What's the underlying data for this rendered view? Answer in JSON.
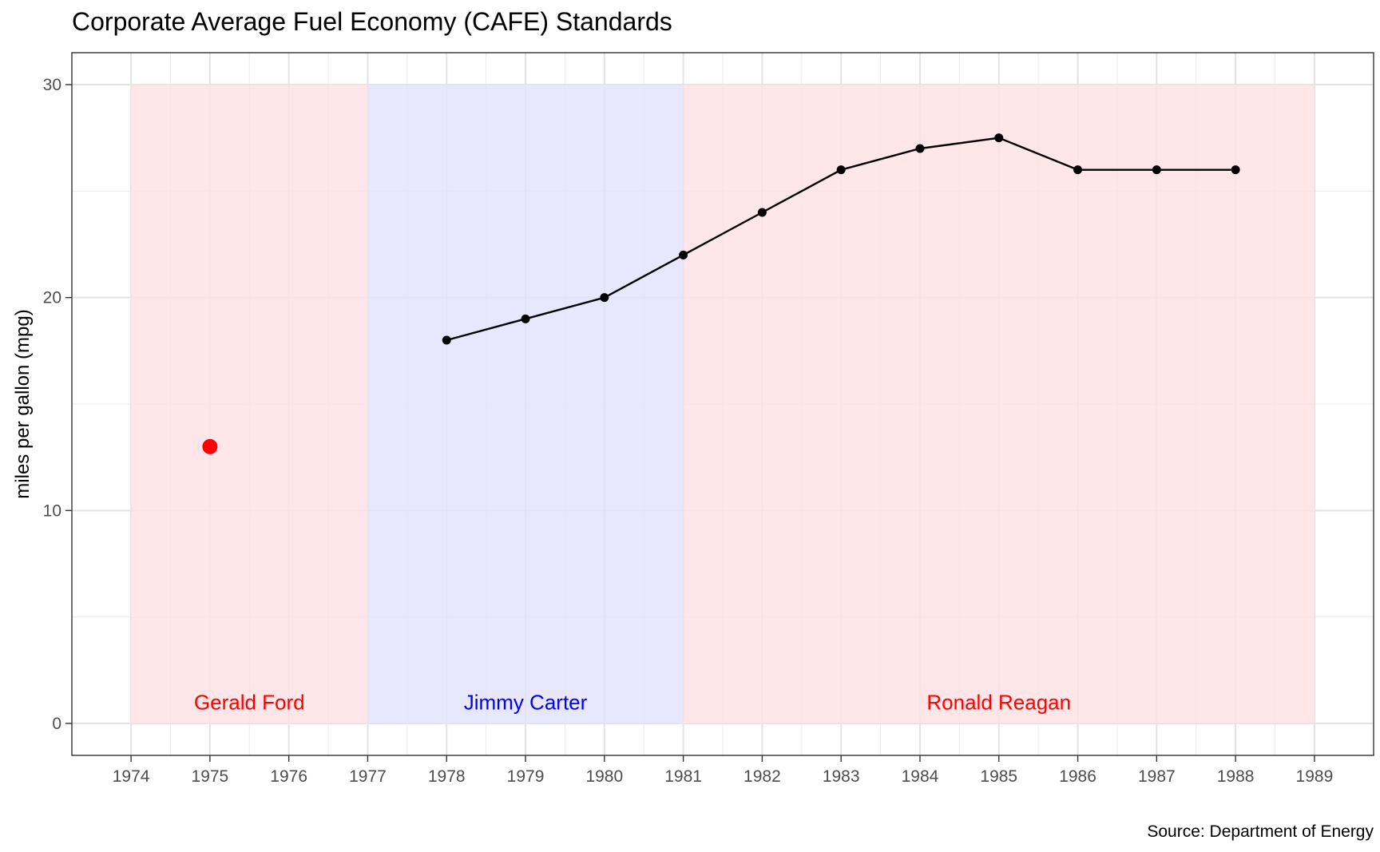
{
  "chart_data": {
    "type": "line",
    "title": "Corporate Average Fuel Economy (CAFE) Standards",
    "xlabel": "",
    "ylabel": "miles per gallon (mpg)",
    "caption": "Source: Department of Energy",
    "xlim": [
      1973.25,
      1989.75
    ],
    "ylim": [
      -1.5,
      31.5
    ],
    "x_ticks": [
      1974,
      1975,
      1976,
      1977,
      1978,
      1979,
      1980,
      1981,
      1982,
      1983,
      1984,
      1985,
      1986,
      1987,
      1988,
      1989
    ],
    "y_ticks": [
      0,
      10,
      20,
      30
    ],
    "grid": true,
    "legend": "none",
    "series": [
      {
        "x": [
          1978,
          1979,
          1980,
          1981,
          1982,
          1983,
          1984,
          1985,
          1986,
          1987,
          1988
        ],
        "values": [
          18,
          19,
          20,
          22,
          24,
          26,
          27,
          27.5,
          26,
          26,
          26
        ],
        "color": "#000000"
      }
    ],
    "highlight_point": {
      "x": 1975,
      "y": 13,
      "color": "#ff0000"
    },
    "regions": [
      {
        "label": "Gerald Ford",
        "x_start": 1974,
        "x_end": 1977,
        "y_start": 0,
        "y_end": 30,
        "fill": "#ffe1e4",
        "text_color": "#ff0000",
        "label_x": 1975.5,
        "label_y": 1
      },
      {
        "label": "Jimmy Carter",
        "x_start": 1977,
        "x_end": 1981,
        "y_start": 0,
        "y_end": 30,
        "fill": "#e2e2fd",
        "text_color": "#0000ff",
        "label_x": 1979,
        "label_y": 1
      },
      {
        "label": "Ronald Reagan",
        "x_start": 1981,
        "x_end": 1989,
        "y_start": 0,
        "y_end": 30,
        "fill": "#ffe1e4",
        "text_color": "#ff0000",
        "label_x": 1985,
        "label_y": 1
      }
    ]
  }
}
